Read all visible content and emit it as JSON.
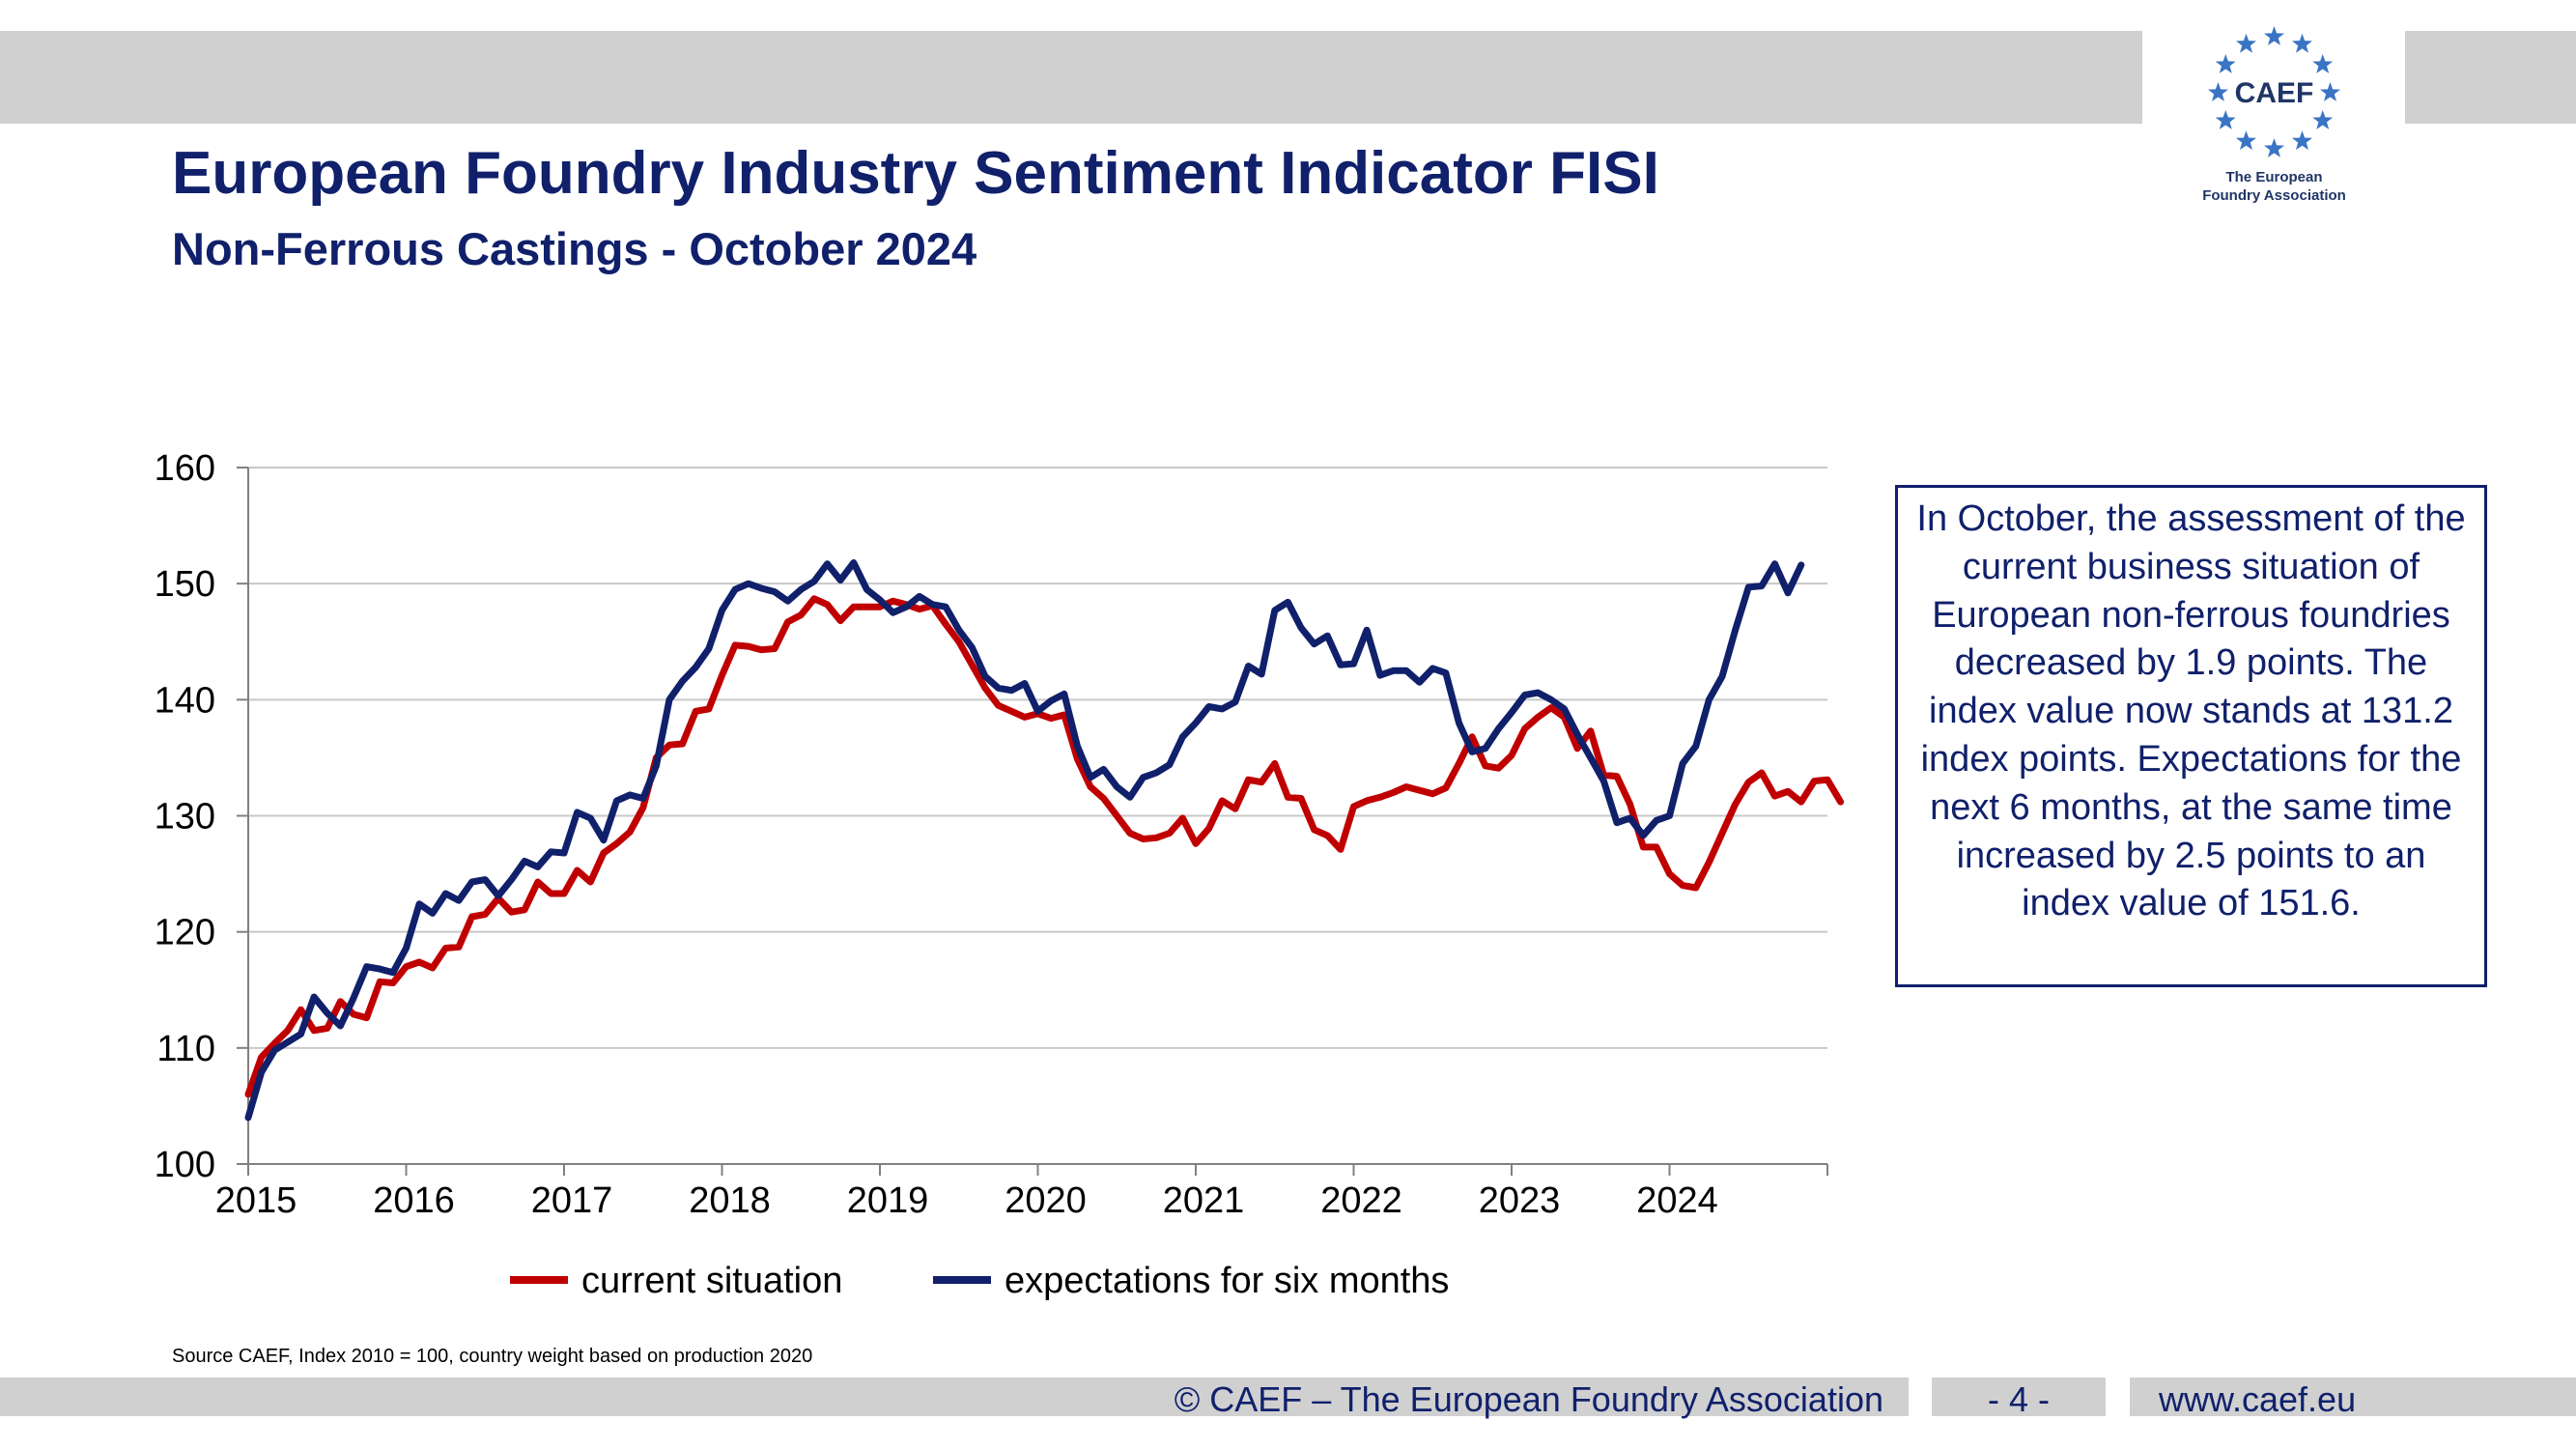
{
  "header": {
    "title": "European Foundry Industry Sentiment Indicator FISI",
    "subtitle": "Non-Ferrous Castings - October 2024"
  },
  "logo": {
    "mark": "CAEF",
    "line1": "The European",
    "line2": "Foundry Association",
    "star_color": "#3a74c4"
  },
  "comment": {
    "text": "In October, the assessment of the current business situation of European non-ferrous foundries decreased by 1.9 points. The index value now stands at 131.2 index points. Expectations for the next 6 months, at the same time increased by 2.5 points to an index value of 151.6."
  },
  "source_note": "Source CAEF, Index 2010 = 100, country weight based on production 2020",
  "footer": {
    "copyright": "© CAEF – The European Foundry Association",
    "page": "- 4 -",
    "website": "www.caef.eu"
  },
  "colors": {
    "accent": "#10206b",
    "current": "#c00000",
    "expectations": "#10206b",
    "bars": "#d0d0d0"
  },
  "chart_data": {
    "type": "line",
    "title": "",
    "xlabel": "",
    "ylabel": "",
    "ylim": [
      100,
      160
    ],
    "yticks": [
      "100",
      "110",
      "120",
      "130",
      "140",
      "150",
      "160"
    ],
    "xtick_labels": [
      "2015",
      "2016",
      "2017",
      "2018",
      "2019",
      "2020",
      "2021",
      "2022",
      "2023",
      "2024"
    ],
    "x_start": "2015-01",
    "x_end": "2024-10",
    "grid": true,
    "legend": "bottom",
    "series": [
      {
        "name": "current situation",
        "color": "#c00000",
        "values": [
          106.0,
          109.2,
          110.4,
          111.5,
          113.3,
          111.5,
          111.7,
          114.0,
          112.9,
          112.6,
          115.7,
          115.6,
          117.0,
          117.4,
          116.9,
          118.6,
          118.7,
          121.3,
          121.5,
          122.9,
          121.7,
          121.9,
          124.3,
          123.3,
          123.3,
          125.3,
          124.3,
          126.8,
          127.6,
          128.6,
          130.7,
          135.0,
          136.1,
          136.2,
          139.0,
          139.2,
          142.1,
          144.7,
          144.6,
          144.3,
          144.4,
          146.7,
          147.3,
          148.7,
          148.2,
          146.8,
          148.0,
          148.0,
          148.0,
          148.5,
          148.2,
          147.8,
          148.1,
          146.5,
          145.0,
          143.0,
          141.0,
          139.5,
          139.0,
          138.5,
          138.8,
          138.4,
          138.7,
          134.9,
          132.5,
          131.5,
          130.0,
          128.5,
          128.0,
          128.1,
          128.5,
          129.8,
          127.6,
          128.9,
          131.3,
          130.6,
          133.1,
          132.9,
          134.5,
          131.6,
          131.5,
          128.8,
          128.3,
          127.1,
          130.8,
          131.3,
          131.6,
          132.0,
          132.5,
          132.2,
          131.9,
          132.4,
          134.5,
          136.8,
          134.3,
          134.1,
          135.2,
          137.5,
          138.5,
          139.3,
          138.5,
          135.8,
          137.3,
          133.5,
          133.4,
          131.0,
          127.3,
          127.3,
          125.0,
          124.0,
          123.8,
          126.0,
          128.5,
          131.0,
          132.9,
          133.7,
          131.7,
          132.1,
          131.2,
          133.0,
          133.1,
          131.2
        ]
      },
      {
        "name": "expectations for six months",
        "color": "#10206b",
        "values": [
          104.0,
          107.9,
          109.8,
          110.5,
          111.2,
          114.4,
          113.0,
          111.9,
          114.3,
          117.0,
          116.8,
          116.5,
          118.6,
          122.4,
          121.6,
          123.3,
          122.7,
          124.3,
          124.5,
          123.1,
          124.5,
          126.1,
          125.6,
          126.9,
          126.8,
          130.3,
          129.8,
          127.9,
          131.3,
          131.8,
          131.5,
          134.3,
          140.0,
          141.6,
          142.8,
          144.4,
          147.7,
          149.5,
          150.0,
          149.6,
          149.3,
          148.5,
          149.5,
          150.2,
          151.7,
          150.3,
          151.8,
          149.5,
          148.6,
          147.5,
          148.0,
          148.9,
          148.2,
          148.0,
          146.0,
          144.5,
          142.0,
          141.0,
          140.8,
          141.4,
          139.0,
          139.9,
          140.5,
          136.0,
          133.3,
          134.0,
          132.5,
          131.6,
          133.3,
          133.7,
          134.4,
          136.8,
          138.0,
          139.4,
          139.2,
          139.8,
          142.9,
          142.2,
          147.7,
          148.4,
          146.2,
          144.8,
          145.5,
          143.0,
          143.1,
          146.0,
          142.1,
          142.5,
          142.5,
          141.5,
          142.7,
          142.3,
          138.0,
          135.5,
          135.8,
          137.5,
          138.9,
          140.4,
          140.6,
          140.0,
          139.2,
          137.0,
          135.0,
          133.0,
          129.4,
          129.8,
          128.3,
          129.6,
          130.0,
          134.5,
          136.0,
          140.0,
          142.0,
          146.0,
          149.7,
          149.8,
          151.7,
          149.2,
          151.6
        ]
      }
    ]
  }
}
